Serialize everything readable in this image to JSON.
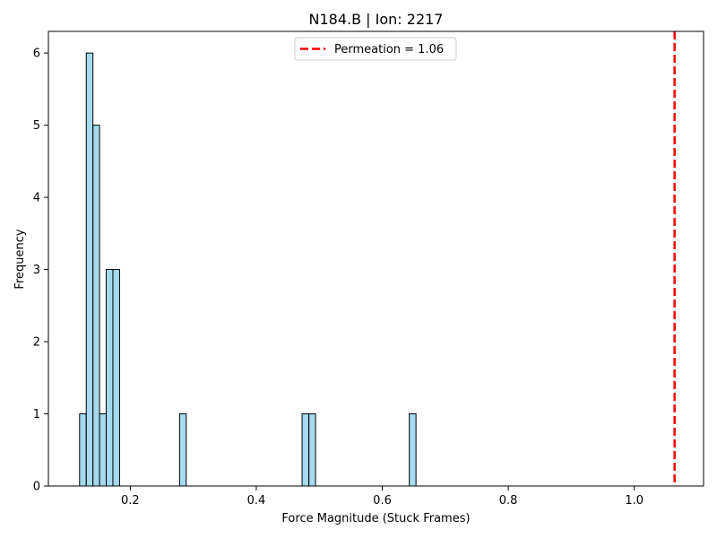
{
  "chart_data": {
    "type": "bar",
    "title": "N184.B | Ion: 2217",
    "xlabel": "Force Magnitude (Stuck Frames)",
    "ylabel": "Frequency",
    "xlim": [
      0.07,
      1.11
    ],
    "ylim": [
      0,
      6.3
    ],
    "xticks": [
      0.2,
      0.4,
      0.6,
      0.8,
      1.0
    ],
    "xtick_labels": [
      "0.2",
      "0.4",
      "0.6",
      "0.8",
      "1.0"
    ],
    "yticks": [
      0,
      1,
      2,
      3,
      4,
      5,
      6
    ],
    "ytick_labels": [
      "0",
      "1",
      "2",
      "3",
      "4",
      "5",
      "6"
    ],
    "grid": false,
    "bar_color": "#87CEEB",
    "bar_edge_color": "#000000",
    "bins": [
      {
        "x_start": 0.1195,
        "x_end": 0.1301,
        "count": 1
      },
      {
        "x_start": 0.1301,
        "x_end": 0.1407,
        "count": 6
      },
      {
        "x_start": 0.1407,
        "x_end": 0.1512,
        "count": 5
      },
      {
        "x_start": 0.1512,
        "x_end": 0.1618,
        "count": 1
      },
      {
        "x_start": 0.1618,
        "x_end": 0.1724,
        "count": 3
      },
      {
        "x_start": 0.1724,
        "x_end": 0.183,
        "count": 3
      },
      {
        "x_start": 0.2782,
        "x_end": 0.2888,
        "count": 1
      },
      {
        "x_start": 0.4727,
        "x_end": 0.4835,
        "count": 1
      },
      {
        "x_start": 0.4835,
        "x_end": 0.4941,
        "count": 1
      },
      {
        "x_start": 0.6429,
        "x_end": 0.6535,
        "count": 1
      }
    ],
    "reference_line": {
      "x": 1.064,
      "label": "Permeation = 1.06",
      "color": "#FF0000",
      "style": "dashed"
    },
    "legend_position": "top-center"
  }
}
